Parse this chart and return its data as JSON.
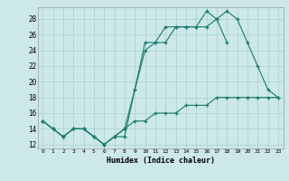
{
  "xlabel": "Humidex (Indice chaleur)",
  "bg_color": "#cce8e8",
  "grid_color": "#aacfcf",
  "line_color": "#1a7a6e",
  "xlim": [
    -0.5,
    23.5
  ],
  "ylim": [
    11.5,
    29.5
  ],
  "xticks": [
    0,
    1,
    2,
    3,
    4,
    5,
    6,
    7,
    8,
    9,
    10,
    11,
    12,
    13,
    14,
    15,
    16,
    17,
    18,
    19,
    20,
    21,
    22,
    23
  ],
  "yticks": [
    12,
    14,
    16,
    18,
    20,
    22,
    24,
    26,
    28
  ],
  "line1_x": [
    0,
    1,
    2,
    3,
    4,
    5,
    6,
    7,
    8,
    9,
    10,
    11,
    12,
    13,
    14,
    15,
    16,
    17,
    18,
    19,
    20,
    21,
    22,
    23
  ],
  "line1_y": [
    15,
    14,
    13,
    14,
    14,
    13,
    12,
    13,
    13,
    19,
    24,
    25,
    25,
    27,
    27,
    27,
    27,
    28,
    29,
    28,
    25,
    22,
    19,
    18
  ],
  "line2_x": [
    0,
    1,
    2,
    3,
    4,
    5,
    6,
    7,
    8,
    9,
    10,
    11,
    12,
    13,
    14,
    15,
    16,
    17,
    18,
    19,
    20,
    21,
    22,
    23
  ],
  "line2_y": [
    15,
    14,
    13,
    14,
    14,
    13,
    12,
    13,
    14,
    15,
    15,
    16,
    16,
    16,
    17,
    17,
    17,
    18,
    18,
    18,
    18,
    18,
    18,
    18
  ],
  "line3_x": [
    0,
    1,
    2,
    3,
    4,
    5,
    6,
    7,
    8,
    9,
    10,
    11,
    12,
    13,
    14,
    15,
    16,
    17,
    18
  ],
  "line3_y": [
    15,
    14,
    13,
    14,
    14,
    13,
    12,
    13,
    14,
    19,
    25,
    25,
    27,
    27,
    27,
    27,
    29,
    28,
    25
  ]
}
